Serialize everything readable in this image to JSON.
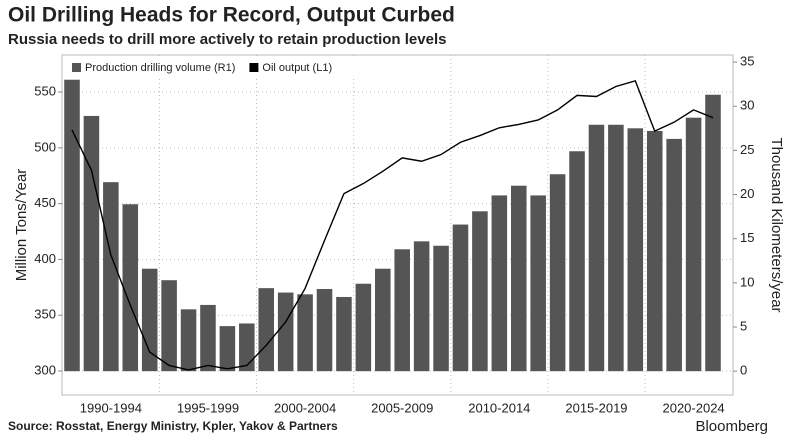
{
  "chart_data": {
    "type": "bar-line",
    "title": "Oil Drilling Heads for Record, Output Curbed",
    "subtitle": "Russia needs to drill more actively to retain production levels",
    "source": "Source: Rosstat, Energy Ministry, Kpler, Yakov & Partners",
    "brand": "Bloomberg",
    "ylabel": "Million Tons/Year",
    "y2label": "Thousand Kilometers/year",
    "categories": [
      null,
      null,
      "1990-1994",
      null,
      null,
      null,
      null,
      "1995-1999",
      null,
      null,
      null,
      null,
      "2000-2004",
      null,
      null,
      null,
      null,
      "2005-2009",
      null,
      null,
      null,
      null,
      "2010-2014",
      null,
      null,
      null,
      null,
      "2015-2019",
      null,
      null,
      null,
      null,
      "2020-2024",
      null
    ],
    "series": [
      {
        "name": "Production drilling volume (R1)",
        "type": "bar",
        "axis": "y2",
        "color": "#555555",
        "values": [
          33.0,
          28.9,
          21.4,
          18.9,
          11.6,
          10.3,
          7.0,
          7.5,
          5.1,
          5.4,
          9.4,
          8.9,
          8.7,
          9.3,
          8.4,
          9.9,
          11.6,
          13.8,
          14.7,
          14.2,
          16.6,
          18.1,
          19.9,
          21.0,
          19.9,
          22.3,
          24.9,
          27.9,
          27.9,
          27.5,
          27.2,
          26.3,
          28.7,
          31.3
        ]
      },
      {
        "name": "Oil output (L1)",
        "type": "line",
        "axis": "y",
        "color": "#000000",
        "values": [
          516,
          480,
          404,
          359,
          317,
          305,
          301,
          305,
          302,
          305,
          323,
          344,
          374,
          417,
          459,
          468,
          479,
          491,
          488,
          494,
          505,
          511,
          518,
          521,
          525,
          534,
          547,
          546,
          555,
          560,
          515,
          523,
          534,
          527
        ]
      }
    ],
    "ylim": [
      278.5,
      583.2
    ],
    "yticks": [
      300,
      350,
      400,
      450,
      500,
      550
    ],
    "y2lim": [
      -2.7,
      35.8
    ],
    "y2ticks": [
      0,
      5,
      10,
      15,
      20,
      25,
      30,
      35
    ],
    "grid": true,
    "legend": "top-left"
  }
}
